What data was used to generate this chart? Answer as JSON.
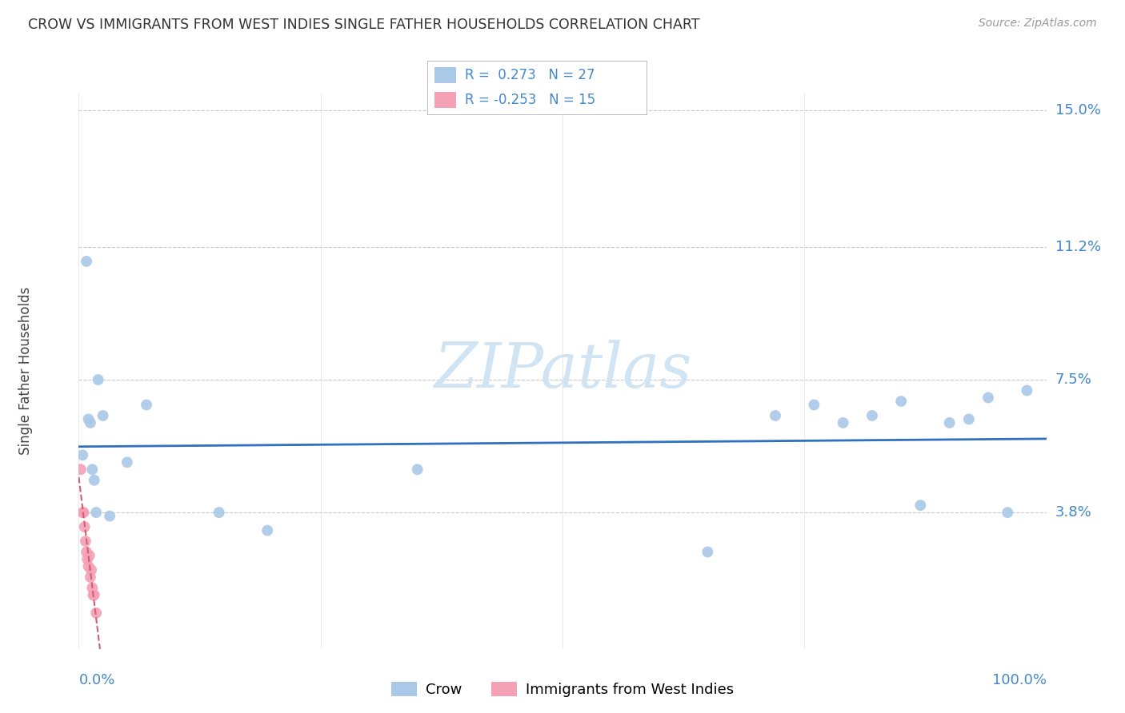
{
  "title": "CROW VS IMMIGRANTS FROM WEST INDIES SINGLE FATHER HOUSEHOLDS CORRELATION CHART",
  "source": "Source: ZipAtlas.com",
  "xlabel_ticks": [
    "0.0%",
    "100.0%"
  ],
  "ylabel_ticks": [
    "3.8%",
    "7.5%",
    "11.2%",
    "15.0%"
  ],
  "ylabel_values": [
    0.038,
    0.075,
    0.112,
    0.15
  ],
  "xlim": [
    0.0,
    1.0
  ],
  "ylim": [
    0.0,
    0.155
  ],
  "ylabel": "Single Father Households",
  "crow_R": 0.273,
  "crow_N": 27,
  "wi_R": -0.253,
  "wi_N": 15,
  "crow_x": [
    0.004,
    0.008,
    0.01,
    0.012,
    0.014,
    0.016,
    0.018,
    0.02,
    0.025,
    0.032,
    0.05,
    0.07,
    0.145,
    0.195,
    0.35,
    0.65,
    0.72,
    0.76,
    0.79,
    0.82,
    0.85,
    0.87,
    0.9,
    0.92,
    0.94,
    0.96,
    0.98
  ],
  "crow_y": [
    0.054,
    0.108,
    0.064,
    0.063,
    0.05,
    0.047,
    0.038,
    0.075,
    0.065,
    0.037,
    0.052,
    0.068,
    0.038,
    0.033,
    0.05,
    0.027,
    0.065,
    0.068,
    0.063,
    0.065,
    0.069,
    0.04,
    0.063,
    0.064,
    0.07,
    0.038,
    0.072
  ],
  "wi_x": [
    0.002,
    0.004,
    0.005,
    0.006,
    0.007,
    0.008,
    0.009,
    0.01,
    0.011,
    0.012,
    0.013,
    0.014,
    0.015,
    0.016,
    0.018
  ],
  "wi_y": [
    0.05,
    0.038,
    0.038,
    0.034,
    0.03,
    0.027,
    0.025,
    0.023,
    0.026,
    0.02,
    0.022,
    0.017,
    0.015,
    0.015,
    0.01
  ],
  "crow_color": "#aac8e8",
  "wi_color": "#f4a0b5",
  "crow_line_color": "#3070c0",
  "wi_line_color": "#d06070",
  "grid_color": "#c8c8cc",
  "axis_color": "#4488cc",
  "watermark_color": "#d0e4f4",
  "marker_size": 100
}
